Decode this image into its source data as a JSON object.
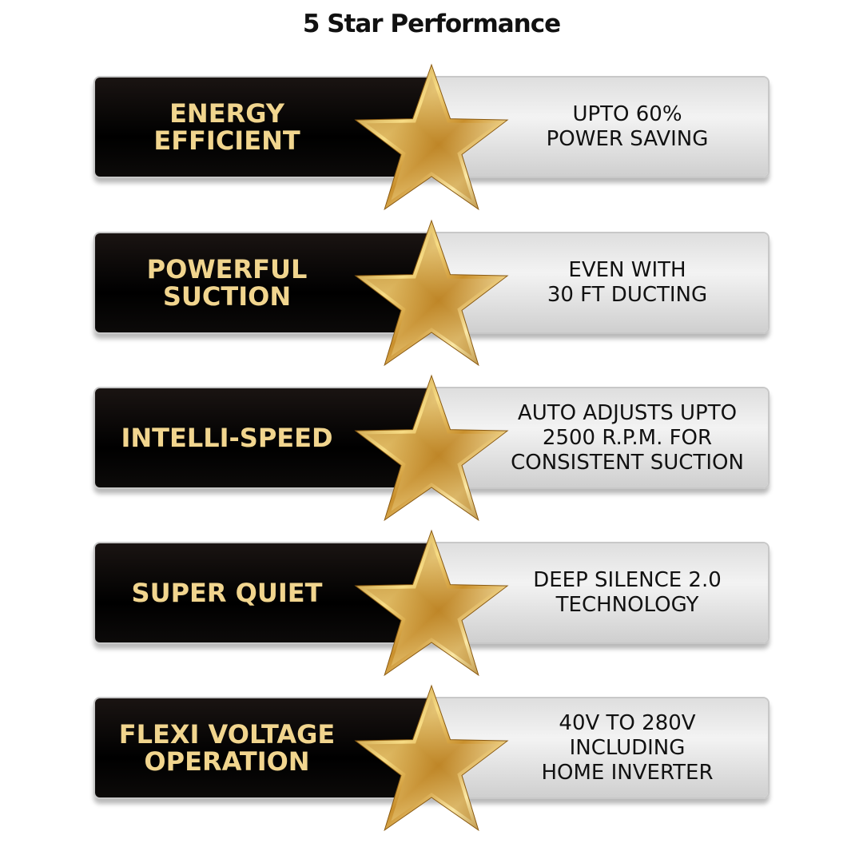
{
  "title": "5 Star Performance",
  "colors": {
    "gold_text": "#f1d58e",
    "left_panel": "#000000",
    "right_panel": "#e4e4e4",
    "star": "#d9a93a"
  },
  "icon": "gold-star-icon",
  "features": [
    {
      "label": "ENERGY\nEFFICIENT",
      "detail": "UPTO 60%\nPOWER SAVING"
    },
    {
      "label": "POWERFUL\nSUCTION",
      "detail": "EVEN WITH\n30 FT DUCTING"
    },
    {
      "label": "INTELLI-SPEED",
      "detail": "AUTO ADJUSTS UPTO\n2500 R.P.M. FOR\nCONSISTENT SUCTION"
    },
    {
      "label": "SUPER QUIET",
      "detail": "DEEP SILENCE 2.0\nTECHNOLOGY"
    },
    {
      "label": "FLEXI VOLTAGE\nOPERATION",
      "detail": "40V TO 280V\nINCLUDING\nHOME INVERTER"
    }
  ]
}
